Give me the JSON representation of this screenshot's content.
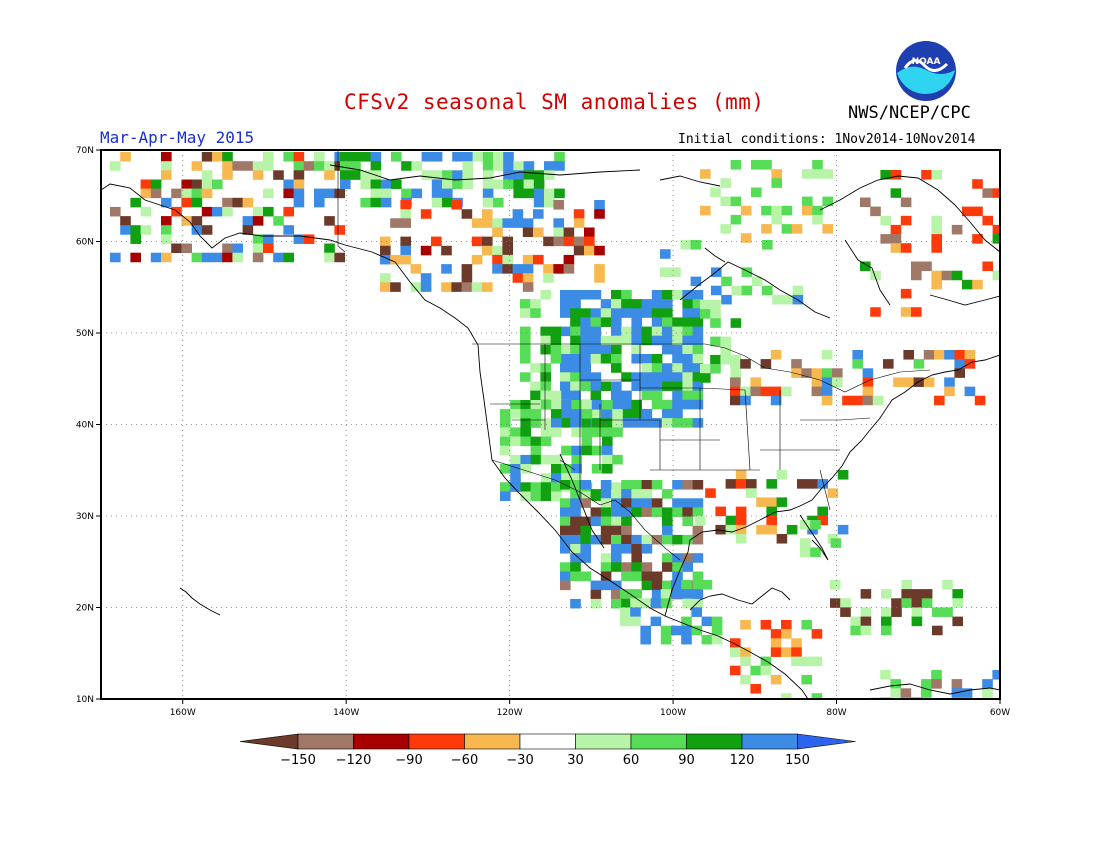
{
  "title": "CFSv2 seasonal SM anomalies (mm)",
  "agency": "NWS/NCEP/CPC",
  "period": "Mar-Apr-May 2015",
  "initial_conditions": "Initial conditions: 1Nov2014-10Nov2014",
  "logo_text": "NOAA",
  "map": {
    "lat_ticks": [
      "70N",
      "60N",
      "50N",
      "40N",
      "30N",
      "20N",
      "10N"
    ],
    "lon_ticks": [
      "160W",
      "140W",
      "120W",
      "100W",
      "80W",
      "60W"
    ],
    "lat_range": [
      10,
      70
    ],
    "lon_range": [
      -170,
      -60
    ],
    "grid_lines": "dotted"
  },
  "colorbar": {
    "labels": [
      "−150",
      "−120",
      "−90",
      "−60",
      "−30",
      "30",
      "60",
      "90",
      "120",
      "150"
    ],
    "colors": [
      "#6b3a2a",
      "#a07868",
      "#a80000",
      "#ff3a0a",
      "#f8b850",
      "#ffffff",
      "#b8f4a8",
      "#56dc56",
      "#10a010",
      "#3c8ce6",
      "#2c64f0"
    ]
  },
  "anomaly_pattern": [
    {
      "region": "northern-great-plains",
      "category": "120–150"
    },
    {
      "region": "rocky-mountains",
      "category": "60–120"
    },
    {
      "region": "mexico",
      "category": "60–150"
    },
    {
      "region": "western-canada",
      "category": "−150 to −30"
    },
    {
      "region": "alaska",
      "category": "−150 to 150"
    }
  ]
}
